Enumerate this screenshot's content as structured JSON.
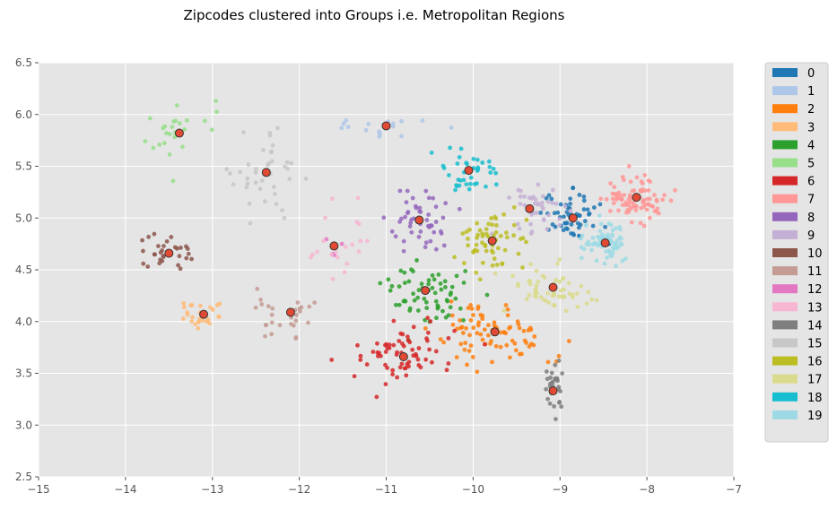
{
  "chart_data": {
    "type": "scatter",
    "title": "Zipcodes clustered into Groups i.e. Metropolitan Regions",
    "xlabel": "",
    "ylabel": "",
    "xlim": [
      -15,
      -7
    ],
    "ylim": [
      2.5,
      6.5
    ],
    "xticks": [
      -15,
      -14,
      -13,
      -12,
      -11,
      -10,
      -9,
      -8,
      -7
    ],
    "yticks": [
      2.5,
      3.0,
      3.5,
      4.0,
      4.5,
      5.0,
      5.5,
      6.0,
      6.5
    ],
    "xtick_labels": [
      "−15",
      "−14",
      "−13",
      "−12",
      "−11",
      "−10",
      "−9",
      "−8",
      "−7"
    ],
    "ytick_labels": [
      "2.5",
      "3.0",
      "3.5",
      "4.0",
      "4.5",
      "5.0",
      "5.5",
      "6.0",
      "6.5"
    ],
    "grid": true,
    "legend_position": "outside-right",
    "centroid_color": "#e24a33",
    "series": [
      {
        "name": "0",
        "color": "#1f77b4",
        "center": [
          -8.85,
          5.0
        ],
        "spread": [
          0.28,
          0.18
        ],
        "count": 60
      },
      {
        "name": "1",
        "color": "#aec7e8",
        "center": [
          -11.0,
          5.9
        ],
        "spread": [
          0.45,
          0.12
        ],
        "count": 18
      },
      {
        "name": "2",
        "color": "#ff7f0e",
        "center": [
          -9.75,
          3.9
        ],
        "spread": [
          0.5,
          0.25
        ],
        "count": 85
      },
      {
        "name": "3",
        "color": "#ffbb78",
        "center": [
          -13.1,
          4.07
        ],
        "spread": [
          0.25,
          0.13
        ],
        "count": 30
      },
      {
        "name": "4",
        "color": "#2ca02c",
        "center": [
          -10.55,
          4.3
        ],
        "spread": [
          0.4,
          0.28
        ],
        "count": 65
      },
      {
        "name": "5",
        "color": "#98df8a",
        "center": [
          -13.4,
          5.82
        ],
        "spread": [
          0.35,
          0.25
        ],
        "count": 25
      },
      {
        "name": "6",
        "color": "#d62728",
        "center": [
          -10.8,
          3.65
        ],
        "spread": [
          0.45,
          0.22
        ],
        "count": 70
      },
      {
        "name": "7",
        "color": "#ff9896",
        "center": [
          -8.12,
          5.2
        ],
        "spread": [
          0.3,
          0.18
        ],
        "count": 90
      },
      {
        "name": "8",
        "color": "#9467bd",
        "center": [
          -10.62,
          4.98
        ],
        "spread": [
          0.35,
          0.25
        ],
        "count": 50
      },
      {
        "name": "9",
        "color": "#c5b0d5",
        "center": [
          -9.35,
          5.1
        ],
        "spread": [
          0.3,
          0.2
        ],
        "count": 40
      },
      {
        "name": "10",
        "color": "#8c564b",
        "center": [
          -13.5,
          4.66
        ],
        "spread": [
          0.25,
          0.2
        ],
        "count": 30
      },
      {
        "name": "11",
        "color": "#c49c94",
        "center": [
          -12.1,
          4.08
        ],
        "spread": [
          0.4,
          0.25
        ],
        "count": 28
      },
      {
        "name": "12",
        "color": "#e377c2",
        "center": [
          -11.6,
          4.73
        ],
        "spread": [
          0.15,
          0.1
        ],
        "count": 4
      },
      {
        "name": "13",
        "color": "#f7b6d2",
        "center": [
          -11.6,
          4.73
        ],
        "spread": [
          0.3,
          0.3
        ],
        "count": 20
      },
      {
        "name": "14",
        "color": "#7f7f7f",
        "center": [
          -9.08,
          3.33
        ],
        "spread": [
          0.1,
          0.2
        ],
        "count": 30
      },
      {
        "name": "15",
        "color": "#c7c7c7",
        "center": [
          -12.38,
          5.43
        ],
        "spread": [
          0.45,
          0.35
        ],
        "count": 40
      },
      {
        "name": "16",
        "color": "#bcbd22",
        "center": [
          -9.78,
          4.78
        ],
        "spread": [
          0.3,
          0.22
        ],
        "count": 60
      },
      {
        "name": "17",
        "color": "#dbdb8d",
        "center": [
          -9.08,
          4.33
        ],
        "spread": [
          0.4,
          0.2
        ],
        "count": 60
      },
      {
        "name": "18",
        "color": "#17becf",
        "center": [
          -10.05,
          5.46
        ],
        "spread": [
          0.3,
          0.18
        ],
        "count": 40
      },
      {
        "name": "19",
        "color": "#9edae5",
        "center": [
          -8.48,
          4.76
        ],
        "spread": [
          0.2,
          0.18
        ],
        "count": 70
      }
    ],
    "centroids": [
      {
        "x": -8.85,
        "y": 5.0
      },
      {
        "x": -11.0,
        "y": 5.89
      },
      {
        "x": -9.75,
        "y": 3.9
      },
      {
        "x": -13.1,
        "y": 4.07
      },
      {
        "x": -10.55,
        "y": 4.3
      },
      {
        "x": -13.38,
        "y": 5.82
      },
      {
        "x": -10.8,
        "y": 3.66
      },
      {
        "x": -8.12,
        "y": 5.2
      },
      {
        "x": -10.62,
        "y": 4.98
      },
      {
        "x": -9.35,
        "y": 5.09
      },
      {
        "x": -13.5,
        "y": 4.66
      },
      {
        "x": -12.1,
        "y": 4.09
      },
      {
        "x": -11.6,
        "y": 4.73
      },
      {
        "x": -9.08,
        "y": 3.33
      },
      {
        "x": -12.38,
        "y": 5.44
      },
      {
        "x": -9.78,
        "y": 4.78
      },
      {
        "x": -9.08,
        "y": 4.33
      },
      {
        "x": -10.05,
        "y": 5.46
      },
      {
        "x": -8.48,
        "y": 4.76
      }
    ]
  }
}
